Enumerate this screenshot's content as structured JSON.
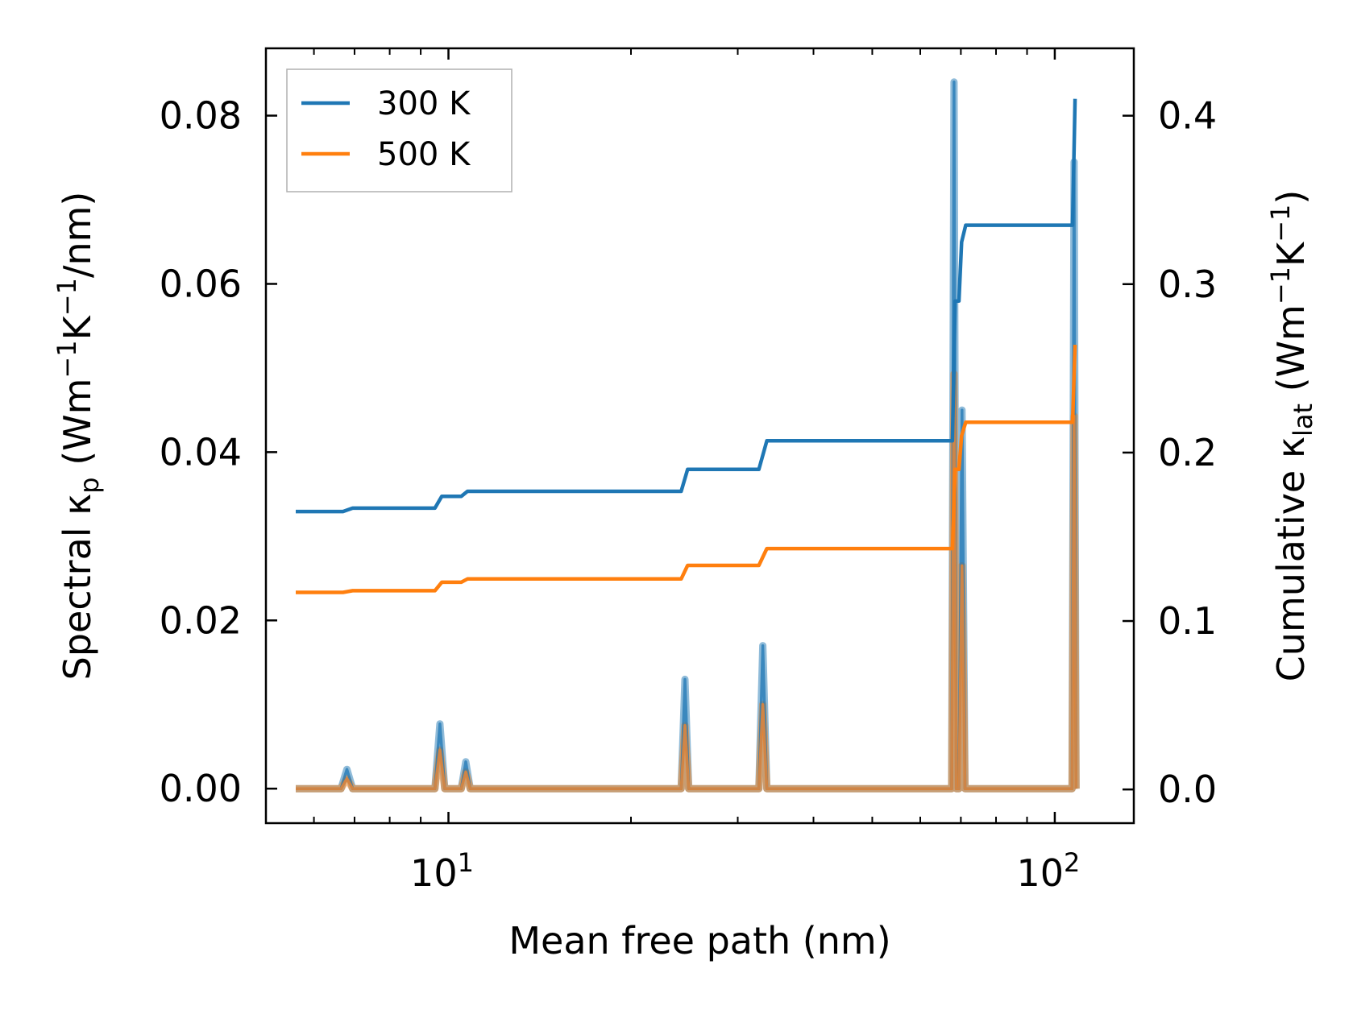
{
  "chart_data": {
    "type": "line",
    "xscale": "log",
    "xlim": [
      5.0,
      135.0
    ],
    "ylim_left": [
      -0.0041,
      0.088
    ],
    "ylim_right": [
      -0.02,
      0.44
    ],
    "xlabel": "Mean free path (nm)",
    "ylabel_left": {
      "prefix": "Spectral κ",
      "sub": "p",
      "unit_open": " (Wm",
      "sup1": "−1",
      "mid": "K",
      "sup2": "−1",
      "end": "/nm)"
    },
    "ylabel_right": {
      "prefix": "Cumulative κ",
      "sub": "lat",
      "unit_open": " (Wm",
      "sup1": "−1",
      "mid": "K",
      "sup2": "−1",
      "end": ")"
    },
    "x_ticks": [
      {
        "value": 10,
        "base": "10",
        "exp": "1"
      },
      {
        "value": 100,
        "base": "10",
        "exp": "2"
      }
    ],
    "y_ticks_left": [
      {
        "value": 0.0,
        "label": "0.00"
      },
      {
        "value": 0.02,
        "label": "0.02"
      },
      {
        "value": 0.04,
        "label": "0.04"
      },
      {
        "value": 0.06,
        "label": "0.06"
      },
      {
        "value": 0.08,
        "label": "0.08"
      }
    ],
    "y_ticks_right": [
      {
        "value": 0.0,
        "label": "0.0"
      },
      {
        "value": 0.1,
        "label": "0.1"
      },
      {
        "value": 0.2,
        "label": "0.2"
      },
      {
        "value": 0.3,
        "label": "0.3"
      },
      {
        "value": 0.4,
        "label": "0.4"
      }
    ],
    "legend": {
      "placement": "top-left",
      "entries": [
        {
          "label": "300 K",
          "color": "#1f77b4"
        },
        {
          "label": "500 K",
          "color": "#ff7f0e"
        }
      ]
    },
    "series": [
      {
        "name": "300 K",
        "kind": "cumulative",
        "axis": "right",
        "color": "#1f77b4",
        "x": [
          5.6,
          6.7,
          6.95,
          9.5,
          9.75,
          10.5,
          10.75,
          24.2,
          24.8,
          32.5,
          33.5,
          67.8,
          68.5,
          69.5,
          70.2,
          71.3,
          107.0,
          108.0
        ],
        "y": [
          0.165,
          0.165,
          0.167,
          0.167,
          0.174,
          0.174,
          0.177,
          0.177,
          0.19,
          0.19,
          0.207,
          0.207,
          0.29,
          0.29,
          0.325,
          0.335,
          0.335,
          0.41
        ]
      },
      {
        "name": "500 K",
        "kind": "cumulative",
        "axis": "right",
        "color": "#ff7f0e",
        "x": [
          5.6,
          6.7,
          6.95,
          9.5,
          9.75,
          10.5,
          10.75,
          24.2,
          24.8,
          32.5,
          33.5,
          67.8,
          68.5,
          69.5,
          70.2,
          71.3,
          107.0,
          108.0
        ],
        "y": [
          0.117,
          0.117,
          0.118,
          0.118,
          0.123,
          0.123,
          0.125,
          0.125,
          0.133,
          0.133,
          0.143,
          0.143,
          0.19,
          0.19,
          0.21,
          0.218,
          0.218,
          0.264
        ]
      },
      {
        "name": "300 K spectral",
        "kind": "spectral",
        "axis": "left",
        "color": "#1f77b4",
        "x": [
          5.6,
          6.65,
          6.8,
          6.95,
          9.5,
          9.68,
          9.86,
          10.5,
          10.68,
          10.86,
          24.2,
          24.55,
          24.9,
          32.5,
          33.0,
          33.5,
          67.6,
          68.2,
          68.8,
          69.5,
          70.3,
          71.1,
          106.8,
          107.6,
          108.4
        ],
        "y": [
          0.0,
          0.0,
          0.0023,
          0.0,
          0.0,
          0.0077,
          0.0,
          0.0,
          0.0032,
          0.0,
          0.0,
          0.013,
          0.0,
          0.0,
          0.017,
          0.0,
          0.0,
          0.084,
          0.0,
          0.0,
          0.045,
          0.0,
          0.0,
          0.0745,
          0.0
        ]
      },
      {
        "name": "500 K spectral",
        "kind": "spectral",
        "axis": "left",
        "color": "#ff7f0e",
        "x": [
          5.6,
          6.65,
          6.8,
          6.95,
          9.5,
          9.68,
          9.86,
          10.5,
          10.68,
          10.86,
          24.2,
          24.55,
          24.9,
          32.5,
          33.0,
          33.5,
          67.6,
          68.2,
          68.8,
          69.5,
          70.3,
          71.1,
          106.8,
          107.6,
          108.4
        ],
        "y": [
          0.0,
          0.0,
          0.0012,
          0.0,
          0.0,
          0.0046,
          0.0,
          0.0,
          0.002,
          0.0,
          0.0,
          0.0075,
          0.0,
          0.0,
          0.01,
          0.0,
          0.0,
          0.0493,
          0.0,
          0.0,
          0.0265,
          0.0,
          0.0,
          0.0443,
          0.0
        ]
      }
    ]
  }
}
